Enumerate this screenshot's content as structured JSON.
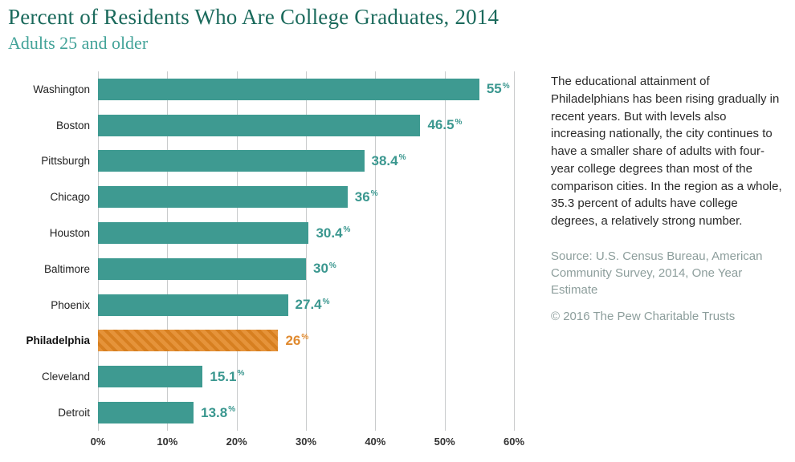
{
  "header": {
    "title": "Percent of Residents Who Are College Graduates, 2014",
    "subtitle": "Adults 25 and older"
  },
  "chart_data": {
    "type": "bar",
    "orientation": "horizontal",
    "title": "Percent of Residents Who Are College Graduates, 2014",
    "subtitle": "Adults 25 and older",
    "categories": [
      "Washington",
      "Boston",
      "Pittsburgh",
      "Chicago",
      "Houston",
      "Baltimore",
      "Phoenix",
      "Philadelphia",
      "Cleveland",
      "Detroit"
    ],
    "values": [
      55,
      46.5,
      38.4,
      36,
      30.4,
      30,
      27.4,
      26,
      15.1,
      13.8
    ],
    "value_labels": [
      "55",
      "46.5",
      "38.4",
      "36",
      "30.4",
      "30",
      "27.4",
      "26",
      "15.1",
      "13.8"
    ],
    "highlight_category": "Philadelphia",
    "x_ticks": [
      "0%",
      "10%",
      "20%",
      "30%",
      "40%",
      "50%",
      "60%"
    ],
    "xlim": [
      0,
      60
    ],
    "grid": true,
    "legend": "none",
    "bar_color": "#3e9a91",
    "highlight_color": "#e5933a",
    "highlight_stripe_color": "#d77f20",
    "value_label_color": "#3a978f",
    "highlight_value_color": "#e08a2f",
    "percent_suffix": "%"
  },
  "side_panel": {
    "description": "The educational attainment of Philadelphians has been rising gradually in recent years. But with levels also increasing nationally, the city continues to have a smaller share of adults with four-year college degrees than most of the comparison cities. In the region as a whole, 35.3 percent of adults have college degrees, a relatively strong number.",
    "source": "Source: U.S. Census Bureau, American Community Survey, 2014, One Year Estimate",
    "copyright": "© 2016 The Pew Charitable Trusts"
  }
}
